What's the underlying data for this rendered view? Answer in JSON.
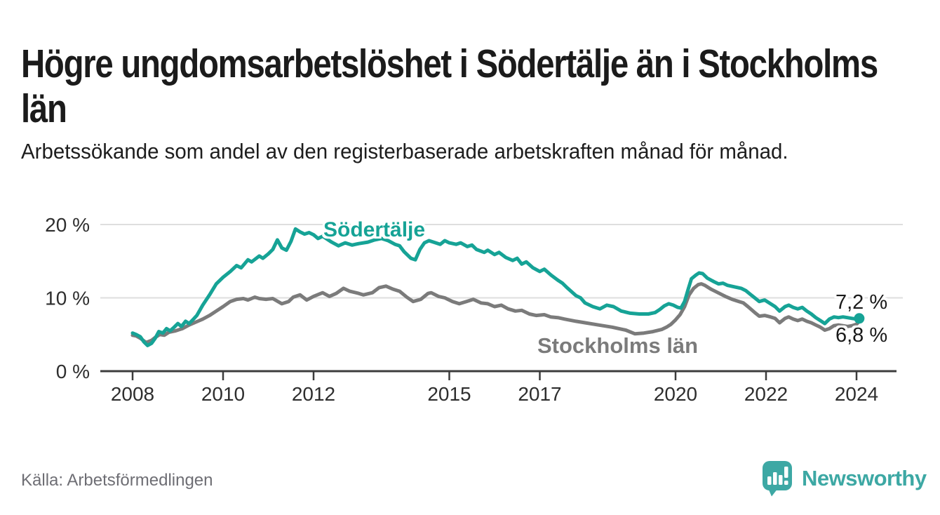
{
  "header": {
    "title": "Högre ungdomsarbetslöshet i Södertälje än i Stockholms län",
    "subtitle": "Arbetssökande som andel av den registerbaserade arbetskraften månad för månad."
  },
  "colors": {
    "accent_teal": "#16a396",
    "brand_teal": "#3da8a4",
    "line_gray": "#7b7b7b",
    "text_dark": "#1b1b1b",
    "axis_text": "#2e2e2e",
    "grid": "#dedede",
    "axis_line": "#3c3c3c",
    "source_text": "#6e6e74"
  },
  "chart_data": {
    "type": "line",
    "unit": "%",
    "grid": "horizontal",
    "x_axis": {
      "ticks": [
        2008,
        2010,
        2012,
        2015,
        2017,
        2020,
        2022,
        2024
      ],
      "tick_labels": [
        "2008",
        "2010",
        "2012",
        "2015",
        "2017",
        "2020",
        "2022",
        "2024"
      ],
      "range": [
        2007.85,
        2024.35
      ]
    },
    "y_axis": {
      "ticks": [
        20,
        10,
        0
      ],
      "tick_labels": [
        "20 %",
        "10 %",
        "0 %"
      ],
      "range": [
        0,
        21
      ]
    },
    "series": [
      {
        "name": "Södertälje",
        "color": "#16a396",
        "end_label": "7,2 %",
        "end_value": 7.2,
        "points": [
          [
            2008.0,
            5.2
          ],
          [
            2008.08,
            5.0
          ],
          [
            2008.17,
            4.7
          ],
          [
            2008.25,
            4.0
          ],
          [
            2008.33,
            3.5
          ],
          [
            2008.42,
            3.8
          ],
          [
            2008.5,
            4.5
          ],
          [
            2008.58,
            5.4
          ],
          [
            2008.67,
            5.2
          ],
          [
            2008.75,
            5.8
          ],
          [
            2008.83,
            5.5
          ],
          [
            2008.92,
            6.0
          ],
          [
            2009.0,
            6.5
          ],
          [
            2009.08,
            6.1
          ],
          [
            2009.17,
            6.8
          ],
          [
            2009.25,
            6.5
          ],
          [
            2009.33,
            7.0
          ],
          [
            2009.42,
            7.6
          ],
          [
            2009.55,
            9.0
          ],
          [
            2009.7,
            10.4
          ],
          [
            2009.85,
            11.9
          ],
          [
            2010.0,
            12.8
          ],
          [
            2010.16,
            13.6
          ],
          [
            2010.3,
            14.4
          ],
          [
            2010.4,
            14.1
          ],
          [
            2010.55,
            15.2
          ],
          [
            2010.63,
            14.9
          ],
          [
            2010.8,
            15.7
          ],
          [
            2010.88,
            15.4
          ],
          [
            2011.0,
            16.0
          ],
          [
            2011.1,
            16.6
          ],
          [
            2011.2,
            17.9
          ],
          [
            2011.3,
            16.8
          ],
          [
            2011.4,
            16.5
          ],
          [
            2011.5,
            17.7
          ],
          [
            2011.6,
            19.4
          ],
          [
            2011.7,
            19.0
          ],
          [
            2011.8,
            18.7
          ],
          [
            2011.9,
            18.9
          ],
          [
            2012.0,
            18.6
          ],
          [
            2012.1,
            18.1
          ],
          [
            2012.2,
            18.4
          ],
          [
            2012.4,
            17.6
          ],
          [
            2012.55,
            17.1
          ],
          [
            2012.7,
            17.5
          ],
          [
            2012.85,
            17.2
          ],
          [
            2013.0,
            17.4
          ],
          [
            2013.2,
            17.6
          ],
          [
            2013.35,
            17.9
          ],
          [
            2013.5,
            18.1
          ],
          [
            2013.65,
            17.8
          ],
          [
            2013.8,
            17.3
          ],
          [
            2013.9,
            17.1
          ],
          [
            2014.0,
            16.3
          ],
          [
            2014.15,
            15.4
          ],
          [
            2014.25,
            15.2
          ],
          [
            2014.35,
            16.6
          ],
          [
            2014.45,
            17.5
          ],
          [
            2014.55,
            17.8
          ],
          [
            2014.7,
            17.5
          ],
          [
            2014.8,
            17.3
          ],
          [
            2014.9,
            17.8
          ],
          [
            2015.0,
            17.5
          ],
          [
            2015.15,
            17.3
          ],
          [
            2015.25,
            17.5
          ],
          [
            2015.4,
            17.0
          ],
          [
            2015.5,
            17.2
          ],
          [
            2015.6,
            16.6
          ],
          [
            2015.77,
            16.2
          ],
          [
            2015.85,
            16.5
          ],
          [
            2016.0,
            15.9
          ],
          [
            2016.1,
            16.2
          ],
          [
            2016.25,
            15.5
          ],
          [
            2016.4,
            15.1
          ],
          [
            2016.5,
            15.4
          ],
          [
            2016.6,
            14.6
          ],
          [
            2016.7,
            14.9
          ],
          [
            2016.85,
            14.1
          ],
          [
            2017.0,
            13.6
          ],
          [
            2017.1,
            13.9
          ],
          [
            2017.25,
            13.1
          ],
          [
            2017.4,
            12.4
          ],
          [
            2017.5,
            12.0
          ],
          [
            2017.6,
            11.4
          ],
          [
            2017.8,
            10.3
          ],
          [
            2017.9,
            10.0
          ],
          [
            2018.0,
            9.3
          ],
          [
            2018.17,
            8.8
          ],
          [
            2018.33,
            8.5
          ],
          [
            2018.48,
            9.0
          ],
          [
            2018.63,
            8.8
          ],
          [
            2018.8,
            8.2
          ],
          [
            2019.0,
            7.9
          ],
          [
            2019.2,
            7.8
          ],
          [
            2019.4,
            7.8
          ],
          [
            2019.55,
            8.0
          ],
          [
            2019.65,
            8.4
          ],
          [
            2019.75,
            8.9
          ],
          [
            2019.85,
            9.2
          ],
          [
            2019.95,
            9.0
          ],
          [
            2020.05,
            8.7
          ],
          [
            2020.12,
            8.6
          ],
          [
            2020.2,
            9.5
          ],
          [
            2020.28,
            11.2
          ],
          [
            2020.35,
            12.6
          ],
          [
            2020.45,
            13.1
          ],
          [
            2020.52,
            13.4
          ],
          [
            2020.6,
            13.3
          ],
          [
            2020.7,
            12.7
          ],
          [
            2020.85,
            12.2
          ],
          [
            2020.95,
            11.9
          ],
          [
            2021.05,
            12.0
          ],
          [
            2021.15,
            11.7
          ],
          [
            2021.3,
            11.5
          ],
          [
            2021.45,
            11.3
          ],
          [
            2021.55,
            11.0
          ],
          [
            2021.65,
            10.5
          ],
          [
            2021.75,
            10.0
          ],
          [
            2021.85,
            9.5
          ],
          [
            2021.97,
            9.7
          ],
          [
            2022.1,
            9.2
          ],
          [
            2022.2,
            8.8
          ],
          [
            2022.3,
            8.2
          ],
          [
            2022.42,
            8.8
          ],
          [
            2022.5,
            9.0
          ],
          [
            2022.6,
            8.7
          ],
          [
            2022.7,
            8.5
          ],
          [
            2022.8,
            8.7
          ],
          [
            2022.9,
            8.2
          ],
          [
            2023.0,
            7.8
          ],
          [
            2023.1,
            7.3
          ],
          [
            2023.2,
            6.9
          ],
          [
            2023.3,
            6.5
          ],
          [
            2023.4,
            7.1
          ],
          [
            2023.5,
            7.4
          ],
          [
            2023.6,
            7.3
          ],
          [
            2023.7,
            7.4
          ],
          [
            2023.8,
            7.3
          ],
          [
            2023.9,
            7.2
          ],
          [
            2024.0,
            7.1
          ],
          [
            2024.06,
            7.2
          ]
        ]
      },
      {
        "name": "Stockholms län",
        "color": "#7b7b7b",
        "end_label": "6,8 %",
        "end_value": 6.8,
        "points": [
          [
            2008.0,
            4.9
          ],
          [
            2008.08,
            4.8
          ],
          [
            2008.17,
            4.5
          ],
          [
            2008.3,
            3.9
          ],
          [
            2008.42,
            4.2
          ],
          [
            2008.5,
            4.6
          ],
          [
            2008.6,
            5.0
          ],
          [
            2008.7,
            4.9
          ],
          [
            2008.8,
            5.3
          ],
          [
            2008.95,
            5.5
          ],
          [
            2009.1,
            5.8
          ],
          [
            2009.25,
            6.3
          ],
          [
            2009.4,
            6.7
          ],
          [
            2009.55,
            7.1
          ],
          [
            2009.7,
            7.6
          ],
          [
            2009.85,
            8.2
          ],
          [
            2010.0,
            8.8
          ],
          [
            2010.16,
            9.5
          ],
          [
            2010.3,
            9.8
          ],
          [
            2010.45,
            9.9
          ],
          [
            2010.55,
            9.7
          ],
          [
            2010.7,
            10.1
          ],
          [
            2010.8,
            9.9
          ],
          [
            2010.95,
            9.8
          ],
          [
            2011.1,
            9.9
          ],
          [
            2011.3,
            9.2
          ],
          [
            2011.45,
            9.5
          ],
          [
            2011.55,
            10.1
          ],
          [
            2011.7,
            10.4
          ],
          [
            2011.85,
            9.7
          ],
          [
            2012.0,
            10.2
          ],
          [
            2012.2,
            10.7
          ],
          [
            2012.35,
            10.2
          ],
          [
            2012.5,
            10.6
          ],
          [
            2012.66,
            11.3
          ],
          [
            2012.8,
            10.9
          ],
          [
            2013.0,
            10.6
          ],
          [
            2013.1,
            10.4
          ],
          [
            2013.3,
            10.7
          ],
          [
            2013.45,
            11.4
          ],
          [
            2013.6,
            11.6
          ],
          [
            2013.75,
            11.2
          ],
          [
            2013.9,
            10.9
          ],
          [
            2014.06,
            10.1
          ],
          [
            2014.2,
            9.5
          ],
          [
            2014.37,
            9.8
          ],
          [
            2014.53,
            10.6
          ],
          [
            2014.6,
            10.7
          ],
          [
            2014.76,
            10.2
          ],
          [
            2014.9,
            10.0
          ],
          [
            2015.07,
            9.5
          ],
          [
            2015.22,
            9.2
          ],
          [
            2015.38,
            9.5
          ],
          [
            2015.53,
            9.8
          ],
          [
            2015.7,
            9.3
          ],
          [
            2015.85,
            9.2
          ],
          [
            2016.0,
            8.8
          ],
          [
            2016.15,
            9.0
          ],
          [
            2016.3,
            8.5
          ],
          [
            2016.46,
            8.2
          ],
          [
            2016.6,
            8.3
          ],
          [
            2016.77,
            7.8
          ],
          [
            2016.92,
            7.6
          ],
          [
            2017.1,
            7.7
          ],
          [
            2017.24,
            7.4
          ],
          [
            2017.4,
            7.3
          ],
          [
            2017.55,
            7.1
          ],
          [
            2017.8,
            6.8
          ],
          [
            2018.0,
            6.6
          ],
          [
            2018.3,
            6.3
          ],
          [
            2018.6,
            6.0
          ],
          [
            2018.9,
            5.6
          ],
          [
            2019.1,
            5.1
          ],
          [
            2019.3,
            5.2
          ],
          [
            2019.5,
            5.4
          ],
          [
            2019.7,
            5.7
          ],
          [
            2019.8,
            6.0
          ],
          [
            2019.9,
            6.4
          ],
          [
            2020.0,
            7.0
          ],
          [
            2020.1,
            7.7
          ],
          [
            2020.2,
            8.8
          ],
          [
            2020.3,
            10.4
          ],
          [
            2020.4,
            11.3
          ],
          [
            2020.5,
            11.8
          ],
          [
            2020.57,
            11.9
          ],
          [
            2020.65,
            11.7
          ],
          [
            2020.78,
            11.2
          ],
          [
            2020.94,
            10.7
          ],
          [
            2021.1,
            10.2
          ],
          [
            2021.25,
            9.8
          ],
          [
            2021.4,
            9.5
          ],
          [
            2021.5,
            9.3
          ],
          [
            2021.6,
            8.8
          ],
          [
            2021.75,
            8.0
          ],
          [
            2021.85,
            7.5
          ],
          [
            2021.97,
            7.6
          ],
          [
            2022.1,
            7.4
          ],
          [
            2022.2,
            7.2
          ],
          [
            2022.3,
            6.6
          ],
          [
            2022.42,
            7.2
          ],
          [
            2022.5,
            7.4
          ],
          [
            2022.6,
            7.1
          ],
          [
            2022.7,
            6.9
          ],
          [
            2022.8,
            7.1
          ],
          [
            2022.9,
            6.8
          ],
          [
            2023.0,
            6.6
          ],
          [
            2023.1,
            6.3
          ],
          [
            2023.2,
            6.0
          ],
          [
            2023.3,
            5.6
          ],
          [
            2023.4,
            5.8
          ],
          [
            2023.5,
            6.2
          ],
          [
            2023.6,
            6.3
          ],
          [
            2023.7,
            6.2
          ],
          [
            2023.8,
            6.1
          ],
          [
            2023.9,
            6.2
          ],
          [
            2024.0,
            6.4
          ],
          [
            2024.06,
            6.8
          ]
        ]
      }
    ]
  },
  "footer": {
    "source": "Källa: Arbetsförmedlingen",
    "brand": "Newsworthy"
  }
}
